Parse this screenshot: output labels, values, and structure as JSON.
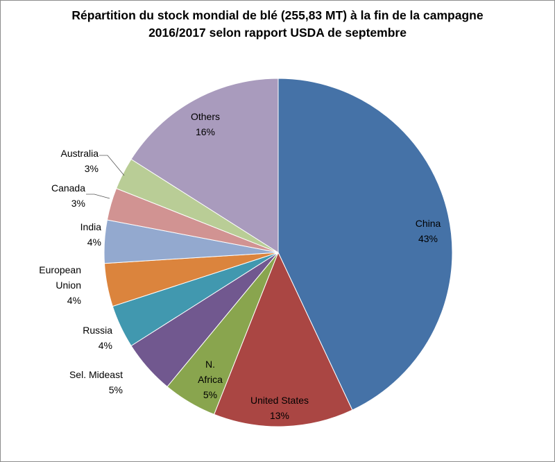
{
  "chart_data": {
    "type": "pie",
    "title_line1": "Répartition du stock mondial de blé (255,83 MT) à la fin de la campagne",
    "title_line2": "2016/2017 selon rapport USDA de septembre",
    "slices": [
      {
        "label": [
          "China"
        ],
        "pct_label": "43%",
        "value": 43,
        "color": "#4572A7"
      },
      {
        "label": [
          "United States"
        ],
        "pct_label": "13%",
        "value": 13,
        "color": "#AA4643"
      },
      {
        "label": [
          "N.",
          "Africa"
        ],
        "pct_label": "5%",
        "value": 5,
        "color": "#89A54E"
      },
      {
        "label": [
          "Sel. Mideast"
        ],
        "pct_label": "5%",
        "value": 5,
        "color": "#71588F"
      },
      {
        "label": [
          "Russia"
        ],
        "pct_label": "4%",
        "value": 4,
        "color": "#4198AF"
      },
      {
        "label": [
          "European",
          "Union"
        ],
        "pct_label": "4%",
        "value": 4,
        "color": "#DB843D"
      },
      {
        "label": [
          "India"
        ],
        "pct_label": "4%",
        "value": 4,
        "color": "#93A9CF"
      },
      {
        "label": [
          "Canada"
        ],
        "pct_label": "3%",
        "value": 3,
        "color": "#D19392"
      },
      {
        "label": [
          "Australia"
        ],
        "pct_label": "3%",
        "value": 3,
        "color": "#B9CD96"
      },
      {
        "label": [
          "Others"
        ],
        "pct_label": "16%",
        "value": 16,
        "color": "#A99BBD"
      }
    ]
  }
}
